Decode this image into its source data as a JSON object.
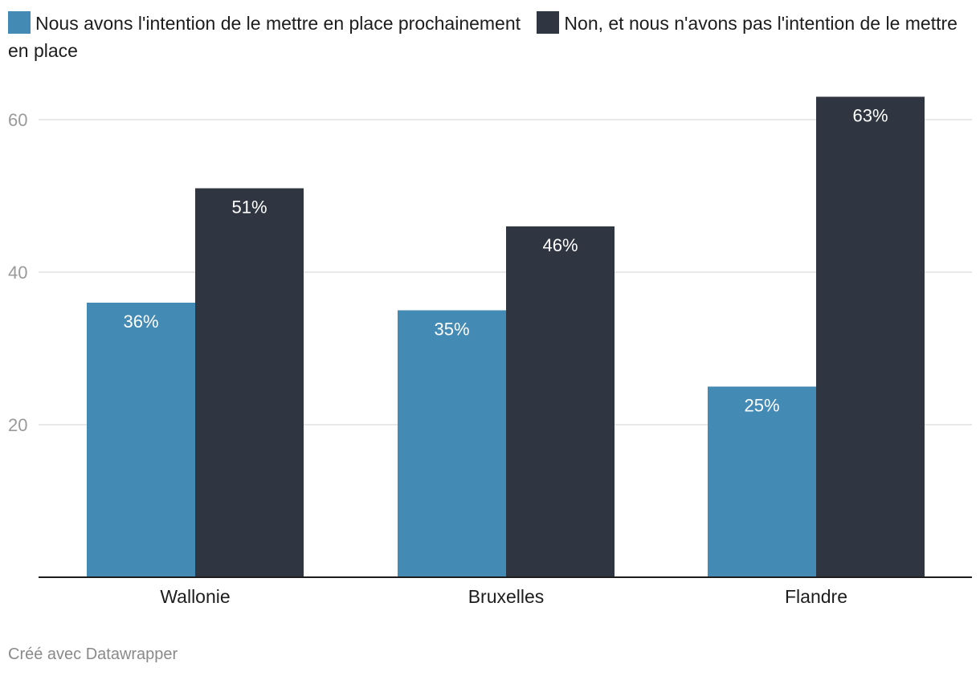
{
  "legend": [
    {
      "label": "Nous avons l'intention de le mettre en place prochainement",
      "color": "#438ab5"
    },
    {
      "label": "Non, et nous n'avons pas l'intention de le mettre en place",
      "color": "#303641"
    }
  ],
  "footer": "Créé avec Datawrapper",
  "chart_data": {
    "type": "bar",
    "categories": [
      "Wallonie",
      "Bruxelles",
      "Flandre"
    ],
    "series": [
      {
        "name": "Nous avons l'intention de le mettre en place prochainement",
        "values": [
          36,
          35,
          25
        ],
        "labels": [
          "36%",
          "35%",
          "25%"
        ],
        "color": "#438ab5"
      },
      {
        "name": "Non, et nous n'avons pas l'intention de le mettre en place",
        "values": [
          51,
          46,
          63
        ],
        "labels": [
          "51%",
          "46%",
          "63%"
        ],
        "color": "#303641"
      }
    ],
    "yticks": [
      20,
      40,
      60
    ],
    "ylim": [
      0,
      63
    ],
    "grid": true,
    "legend_position": "top-left"
  }
}
